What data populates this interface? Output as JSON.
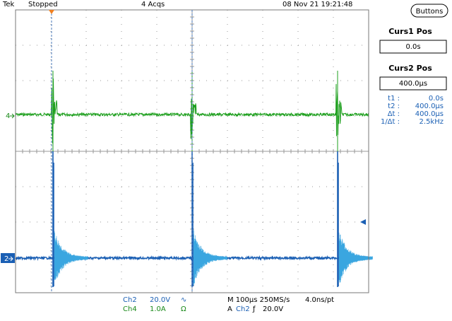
{
  "header": {
    "brand": "Tek",
    "status": "Stopped",
    "acquisitions": "4 Acqs",
    "timestamp": "08 Nov 21 19:21:48"
  },
  "side_panel": {
    "button": "Buttons",
    "cursor1": {
      "label": "Curs1 Pos",
      "value": "0.0s"
    },
    "cursor2": {
      "label": "Curs2 Pos",
      "value": "400.0μs"
    },
    "readouts": [
      {
        "label": "t1 :",
        "value": "0.0s"
      },
      {
        "label": "t2 :",
        "value": "400.0μs"
      },
      {
        "label": "Δt :",
        "value": "400.0μs"
      },
      {
        "label": "1/Δt :",
        "value": "2.5kHz"
      }
    ]
  },
  "channel_markers": [
    "4",
    "2"
  ],
  "footer": {
    "channels": [
      {
        "name": "Ch2",
        "scale": "20.0V",
        "coupling": "∿"
      },
      {
        "name": "Ch4",
        "scale": "1.0A",
        "coupling": "Ω"
      }
    ],
    "timebase": "M 100µs 250MS/s",
    "sample_interval": "4.0ns/pt",
    "trigger": {
      "prefix": "A",
      "source": "Ch2",
      "slope": "ƒ",
      "level": "20.0V"
    }
  }
}
